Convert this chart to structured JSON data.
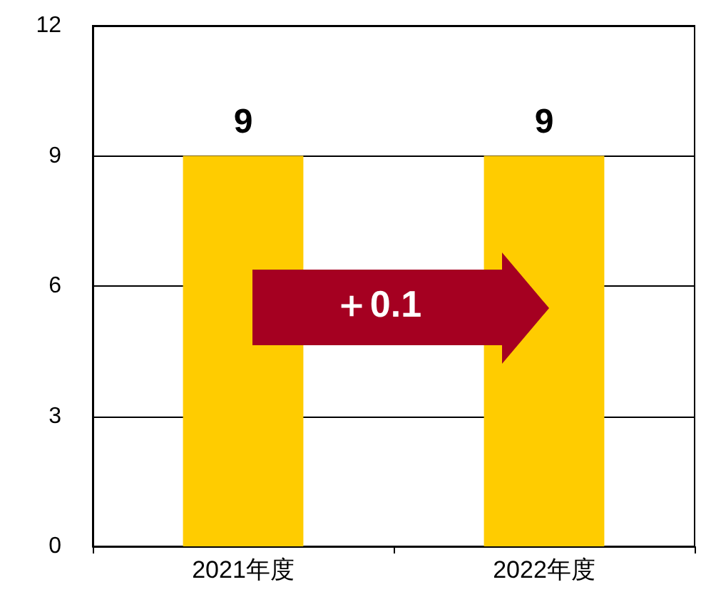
{
  "chart_data": {
    "type": "bar",
    "categories": [
      "2021年度",
      "2022年度"
    ],
    "values": [
      9,
      9
    ],
    "color": "#ffcc00",
    "ylim": [
      0,
      12
    ],
    "yticks": [
      0,
      3,
      6,
      9,
      12
    ],
    "grid": "y",
    "data_labels": true,
    "annotations": [
      "＋0.1"
    ]
  }
}
